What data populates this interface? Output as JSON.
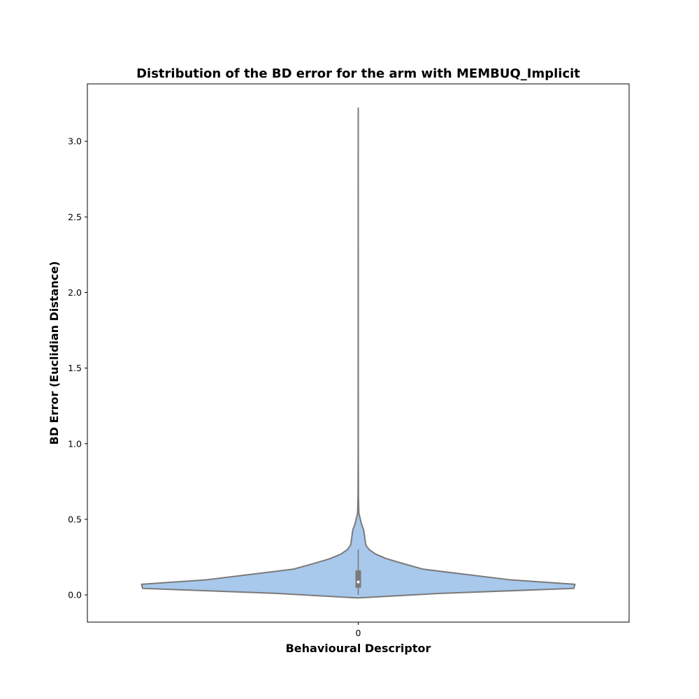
{
  "chart_data": {
    "type": "violin",
    "title": "Distribution of the BD error for the arm with MEMBUQ_Implicit",
    "xlabel": "Behavioural Descriptor",
    "ylabel": "BD Error (Euclidian Distance)",
    "categories": [
      "0"
    ],
    "ylim": [
      -0.18,
      3.38
    ],
    "yticks": [
      0.0,
      0.5,
      1.0,
      1.5,
      2.0,
      2.5,
      3.0
    ],
    "ytick_labels": [
      "0.0",
      "0.5",
      "1.0",
      "1.5",
      "2.0",
      "2.5",
      "3.0"
    ],
    "grid": false,
    "legend": "none",
    "fill_color": "#a8c8ec",
    "edge_color": "#7a7a7a",
    "violin_profile": [
      {
        "y": -0.02,
        "density": 0.0
      },
      {
        "y": 0.01,
        "density": 0.38
      },
      {
        "y": 0.043,
        "density": 0.995
      },
      {
        "y": 0.07,
        "density": 1.0
      },
      {
        "y": 0.1,
        "density": 0.7
      },
      {
        "y": 0.14,
        "density": 0.47
      },
      {
        "y": 0.17,
        "density": 0.3
      },
      {
        "y": 0.21,
        "density": 0.2
      },
      {
        "y": 0.24,
        "density": 0.13
      },
      {
        "y": 0.27,
        "density": 0.08
      },
      {
        "y": 0.3,
        "density": 0.05
      },
      {
        "y": 0.33,
        "density": 0.035
      },
      {
        "y": 0.38,
        "density": 0.03
      },
      {
        "y": 0.43,
        "density": 0.025
      },
      {
        "y": 0.47,
        "density": 0.015
      },
      {
        "y": 0.51,
        "density": 0.008
      },
      {
        "y": 0.54,
        "density": 0.003
      },
      {
        "y": 0.65,
        "density": 0.001
      },
      {
        "y": 1.0,
        "density": 0.0003
      },
      {
        "y": 2.0,
        "density": 0.0002
      },
      {
        "y": 3.22,
        "density": 0.0
      }
    ],
    "box": {
      "whisker_low": 0.0,
      "q1": 0.05,
      "median": 0.085,
      "q3": 0.16,
      "whisker_high": 0.3
    }
  }
}
